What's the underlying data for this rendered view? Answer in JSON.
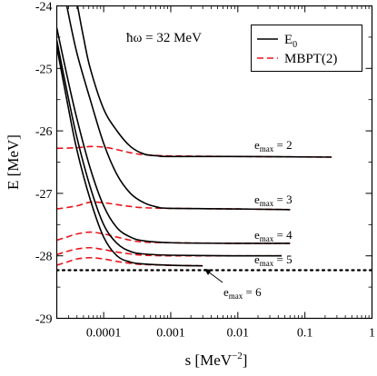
{
  "chart_data": {
    "type": "line",
    "xlabel": "s [MeV",
    "xlabel_exp": "−2",
    "xlabel_close": "]",
    "ylabel": "E [MeV]",
    "xscale": "log",
    "xlim": [
      2e-05,
      1
    ],
    "ylim": [
      -29,
      -24
    ],
    "xticks": [
      {
        "value": 0.0001,
        "label": "0.0001"
      },
      {
        "value": 0.001,
        "label": "0.001"
      },
      {
        "value": 0.01,
        "label": "0.01"
      },
      {
        "value": 0.1,
        "label": "0.1"
      },
      {
        "value": 1,
        "label": "1"
      }
    ],
    "yticks": [
      {
        "value": -24,
        "label": "-24"
      },
      {
        "value": -25,
        "label": "-25"
      },
      {
        "value": -26,
        "label": "-26"
      },
      {
        "value": -27,
        "label": "-27"
      },
      {
        "value": -28,
        "label": "-28"
      },
      {
        "value": -29,
        "label": "-29"
      }
    ],
    "annotation_top": "ħω = 32 MeV",
    "legend": {
      "placement": "top-right",
      "entries": [
        {
          "base": "E",
          "sub": "0",
          "style": "solid",
          "color": "#000000"
        },
        {
          "base": "MBPT(2)",
          "sub": "",
          "style": "dashed",
          "color": "#e8151b"
        }
      ]
    },
    "reference_line": {
      "y": -28.23,
      "style": "dotted",
      "color": "#000000"
    },
    "series": [
      {
        "emax": "2",
        "x_end": 0.25,
        "E0": [
          [
            4.08e-05,
            -24
          ],
          [
            5e-05,
            -24.5
          ],
          [
            6.31e-05,
            -25.0
          ],
          [
            0.0001,
            -25.65
          ],
          [
            0.000158,
            -26.0
          ],
          [
            0.000251,
            -26.25
          ],
          [
            0.000398,
            -26.37
          ],
          [
            0.000631,
            -26.4
          ],
          [
            0.001,
            -26.41
          ],
          [
            0.01,
            -26.41
          ],
          [
            0.25,
            -26.42
          ]
        ],
        "MBPT": [
          [
            2e-05,
            -26.28
          ],
          [
            3.98e-05,
            -26.27
          ],
          [
            6.31e-05,
            -26.25
          ],
          [
            0.0001,
            -26.26
          ],
          [
            0.000158,
            -26.3
          ],
          [
            0.000251,
            -26.35
          ],
          [
            0.000398,
            -26.38
          ],
          [
            0.001,
            -26.4
          ],
          [
            0.01,
            -26.41
          ],
          [
            0.25,
            -26.42
          ]
        ],
        "label": {
          "prefix": "e",
          "sub": "max",
          "suffix": " = 2"
        }
      },
      {
        "emax": "3",
        "x_end": 0.06,
        "E0": [
          [
            2.82e-05,
            -24
          ],
          [
            3.98e-05,
            -24.75
          ],
          [
            6.31e-05,
            -25.5
          ],
          [
            0.0001,
            -26.2
          ],
          [
            0.000158,
            -26.7
          ],
          [
            0.000251,
            -27.0
          ],
          [
            0.000398,
            -27.15
          ],
          [
            0.000631,
            -27.22
          ],
          [
            0.001,
            -27.24
          ],
          [
            0.01,
            -27.25
          ],
          [
            0.06,
            -27.26
          ]
        ],
        "MBPT": [
          [
            2e-05,
            -27.25
          ],
          [
            3.98e-05,
            -27.2
          ],
          [
            6.31e-05,
            -27.14
          ],
          [
            0.0001,
            -27.15
          ],
          [
            0.000158,
            -27.18
          ],
          [
            0.000251,
            -27.21
          ],
          [
            0.000398,
            -27.23
          ],
          [
            0.001,
            -27.24
          ],
          [
            0.01,
            -27.25
          ],
          [
            0.06,
            -27.26
          ]
        ],
        "label": {
          "prefix": "e",
          "sub": "max",
          "suffix": " = 3"
        }
      },
      {
        "emax": "4",
        "x_end": 0.06,
        "E0": [
          [
            2e-05,
            -24.35
          ],
          [
            2.82e-05,
            -25.1
          ],
          [
            3.98e-05,
            -25.8
          ],
          [
            6.31e-05,
            -26.6
          ],
          [
            0.0001,
            -27.2
          ],
          [
            0.000158,
            -27.55
          ],
          [
            0.000251,
            -27.7
          ],
          [
            0.000398,
            -27.76
          ],
          [
            0.001,
            -27.79
          ],
          [
            0.01,
            -27.8
          ],
          [
            0.06,
            -27.8
          ]
        ],
        "MBPT": [
          [
            2e-05,
            -27.75
          ],
          [
            2.82e-05,
            -27.7
          ],
          [
            3.98e-05,
            -27.65
          ],
          [
            6.31e-05,
            -27.62
          ],
          [
            0.0001,
            -27.65
          ],
          [
            0.000158,
            -27.7
          ],
          [
            0.000251,
            -27.75
          ],
          [
            0.000398,
            -27.78
          ],
          [
            0.001,
            -27.79
          ],
          [
            0.01,
            -27.8
          ],
          [
            0.06,
            -27.8
          ]
        ],
        "label": {
          "prefix": "e",
          "sub": "max",
          "suffix": " = 4"
        }
      },
      {
        "emax": "5",
        "x_end": 0.045,
        "E0": [
          [
            2e-05,
            -24.55
          ],
          [
            2.82e-05,
            -25.35
          ],
          [
            3.98e-05,
            -26.1
          ],
          [
            6.31e-05,
            -26.9
          ],
          [
            0.0001,
            -27.5
          ],
          [
            0.000158,
            -27.8
          ],
          [
            0.000251,
            -27.93
          ],
          [
            0.000398,
            -27.97
          ],
          [
            0.001,
            -27.99
          ],
          [
            0.01,
            -28.0
          ],
          [
            0.045,
            -28.0
          ]
        ],
        "MBPT": [
          [
            2e-05,
            -27.98
          ],
          [
            2.82e-05,
            -27.93
          ],
          [
            3.98e-05,
            -27.89
          ],
          [
            6.31e-05,
            -27.87
          ],
          [
            0.0001,
            -27.9
          ],
          [
            0.000158,
            -27.94
          ],
          [
            0.000251,
            -27.97
          ],
          [
            0.000398,
            -27.99
          ],
          [
            0.001,
            -28.0
          ],
          [
            0.01,
            -28.0
          ],
          [
            0.045,
            -28.0
          ]
        ],
        "label": {
          "prefix": "e",
          "sub": "max",
          "suffix": " = 5"
        }
      },
      {
        "emax": "6",
        "x_end": 0.003,
        "E0": [
          [
            2e-05,
            -24.65
          ],
          [
            2.82e-05,
            -25.5
          ],
          [
            3.98e-05,
            -26.3
          ],
          [
            6.31e-05,
            -27.1
          ],
          [
            0.0001,
            -27.7
          ],
          [
            0.000158,
            -28.0
          ],
          [
            0.000251,
            -28.1
          ],
          [
            0.000398,
            -28.13
          ],
          [
            0.001,
            -28.15
          ],
          [
            0.003,
            -28.16
          ]
        ],
        "MBPT": [
          [
            2e-05,
            -28.15
          ],
          [
            2.82e-05,
            -28.1
          ],
          [
            3.98e-05,
            -28.05
          ],
          [
            6.31e-05,
            -28.03
          ],
          [
            0.0001,
            -28.05
          ],
          [
            0.000158,
            -28.09
          ],
          [
            0.000251,
            -28.12
          ],
          [
            0.000398,
            -28.14
          ],
          [
            0.001,
            -28.15
          ],
          [
            0.003,
            -28.16
          ]
        ],
        "label": {
          "prefix": "e",
          "sub": "max",
          "suffix": " = 6"
        }
      }
    ]
  }
}
